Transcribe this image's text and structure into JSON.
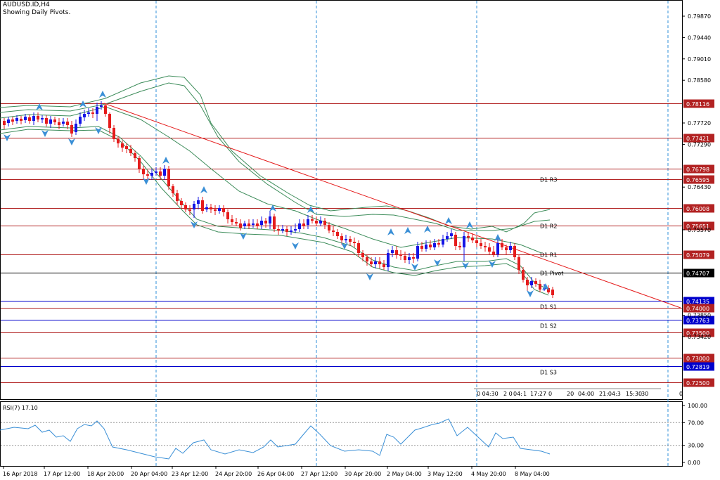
{
  "header": {
    "symbol": "AUDUSD.ID,H4",
    "subtitle": "Showing Daily Pivots."
  },
  "price_axis": [
    "0.79870",
    "0.79440",
    "0.79010",
    "0.78580",
    "0.77720",
    "0.77290",
    "0.76430",
    "0.75570",
    "0.73420",
    "0.73850"
  ],
  "levels": [
    {
      "price": "0.78116",
      "color": "#b22222",
      "text": "white"
    },
    {
      "price": "0.77421",
      "color": "#b22222",
      "text": "white"
    },
    {
      "price": "0.76798",
      "color": "#b22222",
      "text": "white"
    },
    {
      "price": "0.76595",
      "color": "#b22222",
      "text": "white",
      "label": "D1 R3"
    },
    {
      "price": "0.76008",
      "color": "#b22222",
      "text": "white"
    },
    {
      "price": "0.75651",
      "color": "#b22222",
      "text": "white",
      "label": "D1 R2"
    },
    {
      "price": "0.75079",
      "color": "#b22222",
      "text": "white",
      "label": "D1 R1"
    },
    {
      "price": "0.74707",
      "color": "#000000",
      "text": "white",
      "label": "D1 Pivot"
    },
    {
      "price": "0.74135",
      "color": "#0000cc",
      "text": "white",
      "label": "D1 S1"
    },
    {
      "price": "0.74000",
      "color": "#b22222",
      "text": "white"
    },
    {
      "price": "0.73763",
      "color": "#0000cc",
      "text": "white",
      "label": "D1 S2"
    },
    {
      "price": "0.73500",
      "color": "#b22222",
      "text": "white"
    },
    {
      "price": "0.73000",
      "color": "#b22222",
      "text": "white"
    },
    {
      "price": "0.72819",
      "color": "#0000cc",
      "text": "white",
      "label": "D1 S3"
    },
    {
      "price": "0.72500",
      "color": "#b22222",
      "text": "white"
    }
  ],
  "time_axis": [
    "16 Apr 2018",
    "17 Apr 12:00",
    "18 Apr 20:00",
    "20 Apr 04:00",
    "23 Apr 12:00",
    "24 Apr 20:00",
    "26 Apr 04:00",
    "27 Apr 12:00",
    "30 Apr 20:00",
    "2 May 04:00",
    "3 May 12:00",
    "4 May 20:00",
    "8 May 04:00"
  ],
  "time_scale_overlay": [
    "0 04:30",
    "2 0",
    "04:",
    "1",
    "17:27",
    "0",
    "20",
    "04:00",
    "21:04:3",
    "15:30",
    "30",
    "0"
  ],
  "rsi": {
    "label": "RSI(7) 17.10",
    "levels": [
      "100.00",
      "70.00",
      "30.00",
      "0.00"
    ]
  },
  "colors": {
    "bull": "#1515e6",
    "bear": "#e51c1c",
    "band": "#3d8c5a",
    "trend": "#e51c1c",
    "rsi_line": "#3a8fd6",
    "fractal": "#3a8fd6"
  }
}
